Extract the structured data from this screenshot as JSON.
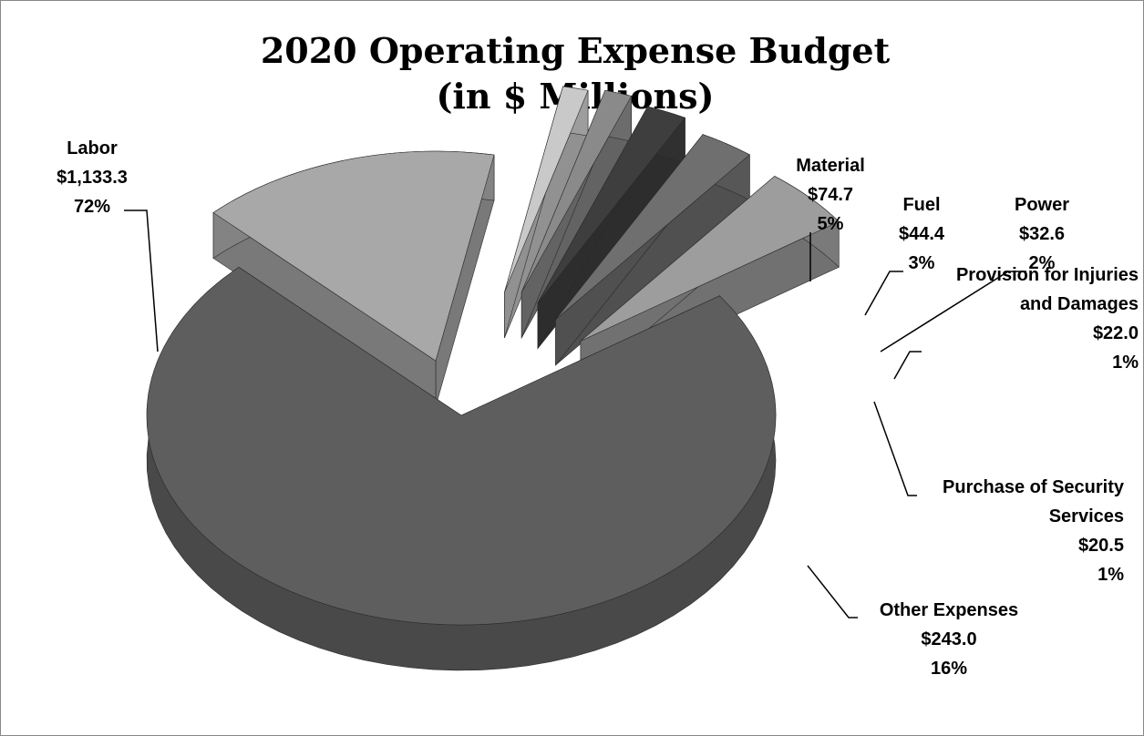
{
  "chart_data": {
    "type": "pie",
    "title": "2020 Operating Expense Budget",
    "subtitle": "(in $ Millions)",
    "slices": [
      {
        "name": "Labor",
        "value": 1133.3,
        "value_label": "$1,133.3",
        "percent_label": "72%",
        "color": "#5e5e5e"
      },
      {
        "name": "Material",
        "value": 74.7,
        "value_label": "$74.7",
        "percent_label": "5%",
        "color": "#9d9d9d"
      },
      {
        "name": "Fuel",
        "value": 44.4,
        "value_label": "$44.4",
        "percent_label": "3%",
        "color": "#6f6f6f"
      },
      {
        "name": "Power",
        "value": 32.6,
        "value_label": "$32.6",
        "percent_label": "2%",
        "color": "#3e3e3e"
      },
      {
        "name": "Provision for Injuries and Damages",
        "name_lines": [
          "Provision for Injuries",
          "and Damages"
        ],
        "value": 22.0,
        "value_label": "$22.0",
        "percent_label": "1%",
        "color": "#8a8a8a"
      },
      {
        "name": "Purchase of Security Services",
        "name_lines": [
          "Purchase of Security",
          "Services"
        ],
        "value": 20.5,
        "value_label": "$20.5",
        "percent_label": "1%",
        "color": "#c9c9c9"
      },
      {
        "name": "Other Expenses",
        "value": 243.0,
        "value_label": "$243.0",
        "percent_label": "16%",
        "color": "#a8a8a8"
      }
    ]
  }
}
